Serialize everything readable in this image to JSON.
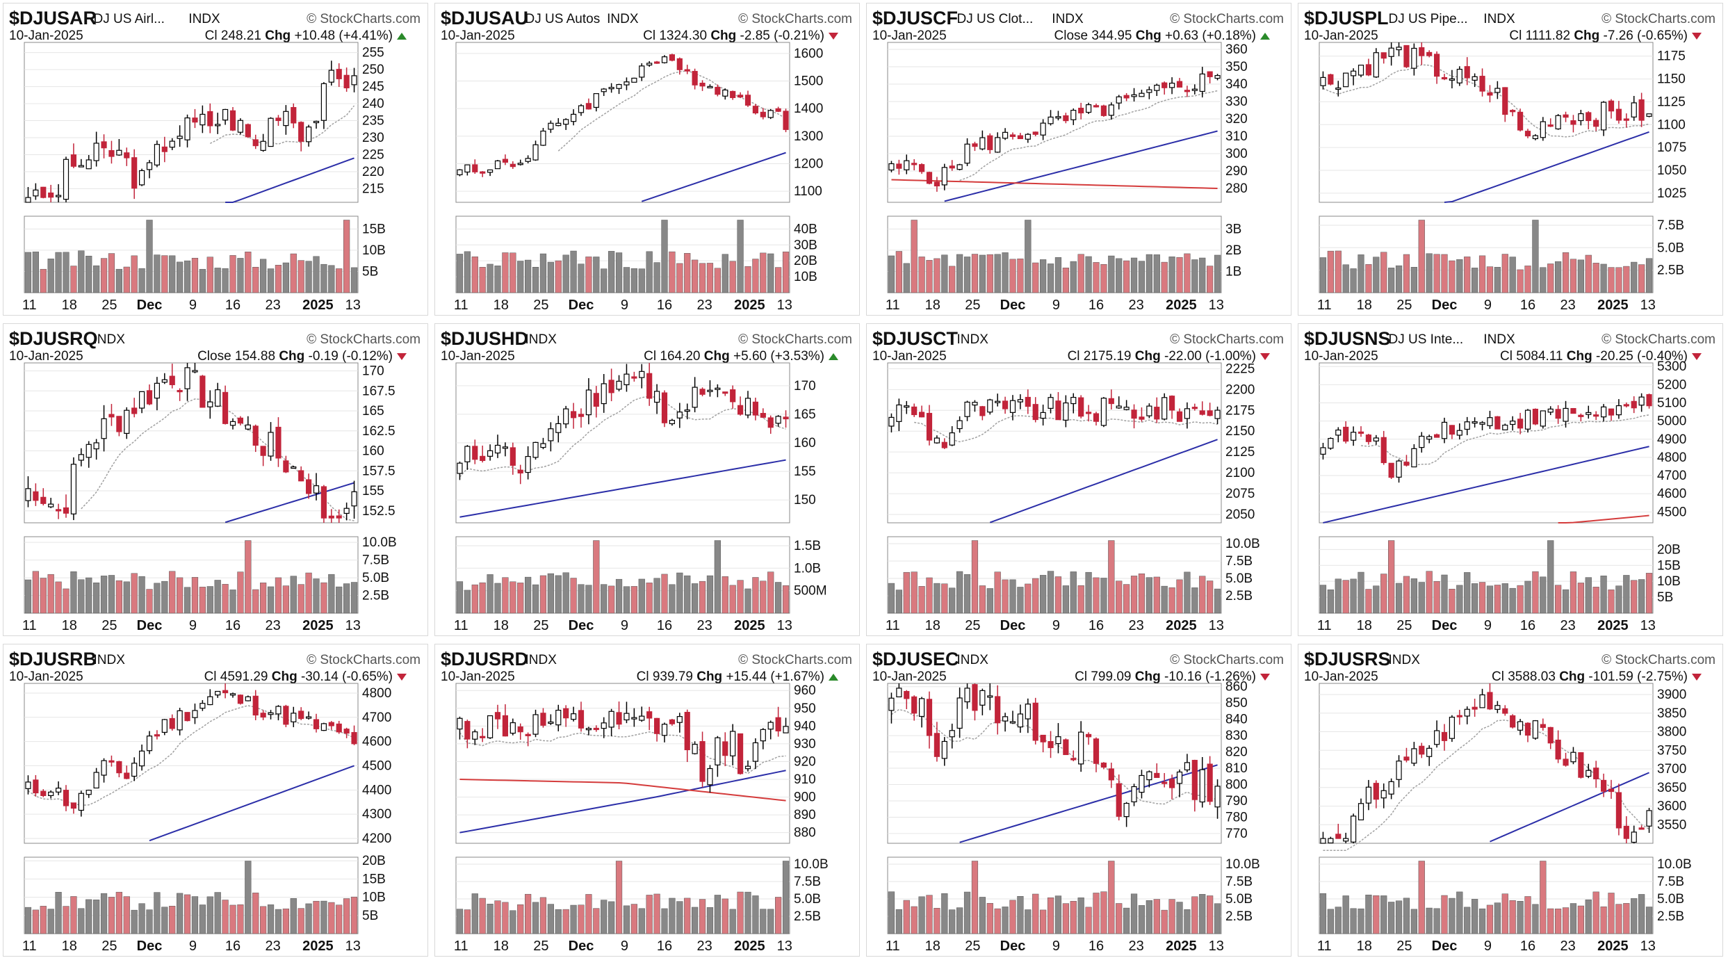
{
  "colors": {
    "up_fill": "#ffffff",
    "down_fill": "#c2243a",
    "candle_edge": "#000000",
    "sma_fast": "#a0a0a0",
    "sma_slow": "#2b2ea8",
    "sma_long": "#d43b3b",
    "vol_gray": "#888888",
    "vol_red": "#d9797f",
    "arrow_up": "#2a8a2a",
    "arrow_down": "#c2243a"
  },
  "watermark": "© StockCharts.com",
  "x_labels": [
    "11",
    "18",
    "25",
    "Dec",
    "9",
    "16",
    "23",
    "2025",
    "13"
  ],
  "chart_data": [
    {
      "type": "candlestick",
      "symbol": "$DJUSAR",
      "name": "DJ US Airl...",
      "exchange": "INDX",
      "date": "10-Jan-2025",
      "price_label": "Cl",
      "price": "248.21",
      "chg": "+10.48 (+4.41%)",
      "dir": "up",
      "yticks": [
        215,
        220,
        225,
        230,
        235,
        240,
        245,
        250,
        255
      ],
      "ylim": [
        211,
        258
      ],
      "start": 218,
      "end": 248.21,
      "lows_at": [
        0.05,
        0.35,
        0.7,
        0.85
      ],
      "amp": 10,
      "sma_fast_from": 0.55,
      "sma_slow": [
        [
          0.6,
          210
        ],
        [
          1.0,
          224
        ]
      ],
      "vol_ticks": [
        "5B",
        "10B",
        "15B"
      ],
      "vol_max": 18,
      "vol_spike_at": [
        0.38,
        0.98
      ]
    },
    {
      "type": "candlestick",
      "symbol": "$DJUSAU",
      "name": "DJ US Autos",
      "exchange": "INDX",
      "date": "10-Jan-2025",
      "price_label": "Cl",
      "price": "1324.30",
      "chg": "-2.85 (-0.21%)",
      "dir": "down",
      "yticks": [
        1100,
        1200,
        1300,
        1400,
        1500,
        1600
      ],
      "ylim": [
        1060,
        1640
      ],
      "start": 1220,
      "end": 1324,
      "lows_at": [
        0.06,
        0.2
      ],
      "peak": [
        0.6,
        1580
      ],
      "amp": 60,
      "sma_fast_from": 0.3,
      "sma_slow": [
        [
          0.55,
          1060
        ],
        [
          1.0,
          1240
        ]
      ],
      "vol_ticks": [
        "10B",
        "20B",
        "30B",
        "40B"
      ],
      "vol_max": 48,
      "vol_spike_at": [
        0.62,
        0.86
      ]
    },
    {
      "type": "candlestick",
      "symbol": "$DJUSCF",
      "name": "DJ US Clot...",
      "exchange": "INDX",
      "date": "10-Jan-2025",
      "price_label": "Close",
      "price": "344.95",
      "chg": "+0.63 (+0.18%)",
      "dir": "up",
      "yticks": [
        280,
        290,
        300,
        310,
        320,
        330,
        340,
        350,
        360
      ],
      "ylim": [
        272,
        364
      ],
      "start": 290,
      "end": 344.95,
      "lows_at": [
        0.15
      ],
      "amp": 12,
      "sma_fast_from": 0.2,
      "sma_slow": [
        [
          0.15,
          272
        ],
        [
          1.0,
          313
        ]
      ],
      "sma_long": [
        [
          0,
          285
        ],
        [
          1.0,
          280
        ]
      ],
      "vol_ticks": [
        "1B",
        "2B",
        "3B"
      ],
      "vol_max": 3.6,
      "vol_spike_at": [
        0.08,
        0.42
      ]
    },
    {
      "type": "candlestick",
      "symbol": "$DJUSPL",
      "name": "DJ US Pipe...",
      "exchange": "INDX",
      "date": "10-Jan-2025",
      "price_label": "Cl",
      "price": "1111.82",
      "chg": "-7.26 (-0.65%)",
      "dir": "down",
      "yticks": [
        1025,
        1050,
        1075,
        1100,
        1125,
        1150,
        1175
      ],
      "ylim": [
        1015,
        1190
      ],
      "start": 1110,
      "end": 1111.82,
      "lows_at": [
        0.62
      ],
      "peak": [
        0.22,
        1180
      ],
      "amp": 30,
      "sma_fast_from": 0.0,
      "sma_slow": [
        [
          0.35,
          1010
        ],
        [
          1.0,
          1092
        ]
      ],
      "vol_ticks": [
        "2.5B",
        "5.0B",
        "7.5B"
      ],
      "vol_max": 8.5,
      "vol_spike_at": [
        0.3,
        0.66
      ]
    },
    {
      "type": "candlestick",
      "symbol": "$DJUSRQ",
      "name": "",
      "exchange": "INDX",
      "date": "10-Jan-2025",
      "price_label": "Close",
      "price": "154.88",
      "chg": "-0.19 (-0.12%)",
      "dir": "down",
      "yticks": [
        152.5,
        155.0,
        157.5,
        160.0,
        162.5,
        165.0,
        167.5,
        170.0
      ],
      "ylim": [
        151,
        171
      ],
      "start": 155,
      "end": 154.88,
      "lows_at": [
        0.1,
        0.95
      ],
      "peak": [
        0.45,
        170
      ],
      "amp": 5,
      "sma_fast_from": 0.15,
      "sma_slow": [
        [
          0.6,
          151
        ],
        [
          1.0,
          156
        ]
      ],
      "vol_ticks": [
        "2.5B",
        "5.0B",
        "7.5B",
        "10.0B"
      ],
      "vol_max": 10.8,
      "vol_spike_at": [
        0.68
      ]
    },
    {
      "type": "candlestick",
      "symbol": "$DJUSHD",
      "name": "",
      "exchange": "INDX",
      "date": "10-Jan-2025",
      "price_label": "Cl",
      "price": "164.20",
      "chg": "+5.60 (+3.53%)",
      "dir": "up",
      "yticks": [
        150,
        155,
        160,
        165,
        170
      ],
      "ylim": [
        146,
        174
      ],
      "start": 157,
      "end": 164.2,
      "lows_at": [
        0.2,
        0.65
      ],
      "peak": [
        0.52,
        172
      ],
      "amp": 6,
      "sma_fast_from": 0.0,
      "sma_slow": [
        [
          0,
          147
        ],
        [
          1.0,
          157
        ]
      ],
      "vol_ticks": [
        "500M",
        "1.0B",
        "1.5B"
      ],
      "vol_max": 1.7,
      "vol_spike_at": [
        0.42,
        0.8
      ]
    },
    {
      "type": "candlestick",
      "symbol": "$DJUSCT",
      "name": "",
      "exchange": "INDX",
      "date": "10-Jan-2025",
      "price_label": "Cl",
      "price": "2175.19",
      "chg": "-22.00 (-1.00%)",
      "dir": "down",
      "yticks": [
        2050,
        2075,
        2100,
        2125,
        2150,
        2175,
        2200,
        2225
      ],
      "ylim": [
        2040,
        2232
      ],
      "start": 2175,
      "end": 2175.19,
      "lows_at": [
        0.15
      ],
      "amp": 35,
      "sma_fast_from": 0.05,
      "sma_slow": [
        [
          0.3,
          2040
        ],
        [
          1.0,
          2140
        ]
      ],
      "vol_ticks": [
        "2.5B",
        "5.0B",
        "7.5B",
        "10.0B"
      ],
      "vol_max": 11,
      "vol_spike_at": [
        0.25,
        0.68
      ]
    },
    {
      "type": "candlestick",
      "symbol": "$DJUSNS",
      "name": "DJ US Inte...",
      "exchange": "INDX",
      "date": "10-Jan-2025",
      "price_label": "Cl",
      "price": "5084.11",
      "chg": "-20.25 (-0.40%)",
      "dir": "down",
      "yticks": [
        4500,
        4600,
        4700,
        4800,
        4900,
        5000,
        5100,
        5200,
        5300
      ],
      "ylim": [
        4440,
        5320
      ],
      "start": 4900,
      "end": 5084,
      "lows_at": [
        0.2,
        0.25
      ],
      "amp": 120,
      "sma_fast_from": 0.1,
      "sma_slow": [
        [
          0,
          4440
        ],
        [
          1.0,
          4860
        ]
      ],
      "sma_long": [
        [
          0.7,
          4430
        ],
        [
          1.0,
          4480
        ]
      ],
      "vol_ticks": [
        "5B",
        "10B",
        "15B",
        "20B"
      ],
      "vol_max": 24,
      "vol_spike_at": [
        0.2,
        0.7
      ]
    },
    {
      "type": "candlestick",
      "symbol": "$DJUSRB",
      "name": "",
      "exchange": "INDX",
      "date": "10-Jan-2025",
      "price_label": "Cl",
      "price": "4591.29",
      "chg": "-30.14 (-0.65%)",
      "dir": "down",
      "yticks": [
        4200,
        4300,
        4400,
        4500,
        4600,
        4700,
        4800
      ],
      "ylim": [
        4180,
        4840
      ],
      "start": 4400,
      "end": 4591,
      "lows_at": [
        0.15,
        0.3
      ],
      "peak": [
        0.58,
        4800
      ],
      "amp": 90,
      "sma_fast_from": 0.0,
      "sma_slow": [
        [
          0.35,
          4180
        ],
        [
          1.0,
          4500
        ]
      ],
      "vol_ticks": [
        "5B",
        "10B",
        "15B",
        "20B"
      ],
      "vol_max": 21,
      "vol_spike_at": [
        0.68
      ]
    },
    {
      "type": "candlestick",
      "symbol": "$DJUSRD",
      "name": "",
      "exchange": "INDX",
      "date": "10-Jan-2025",
      "price_label": "Cl",
      "price": "939.79",
      "chg": "+15.44 (+1.67%)",
      "dir": "up",
      "yticks": [
        880,
        890,
        900,
        910,
        920,
        930,
        940,
        950,
        960
      ],
      "ylim": [
        874,
        964
      ],
      "start": 940,
      "end": 939.79,
      "lows_at": [
        0.75,
        0.88
      ],
      "amp": 20,
      "sma_fast_from": 0.0,
      "sma_slow": [
        [
          0,
          880
        ],
        [
          0.6,
          900
        ],
        [
          1.0,
          915
        ]
      ],
      "sma_long": [
        [
          0,
          910
        ],
        [
          0.5,
          908
        ],
        [
          1.0,
          898
        ]
      ],
      "vol_ticks": [
        "2.5B",
        "5.0B",
        "7.5B",
        "10.0B"
      ],
      "vol_max": 11,
      "vol_spike_at": [
        0.48,
        0.99
      ]
    },
    {
      "type": "candlestick",
      "symbol": "$DJUSEC",
      "name": "",
      "exchange": "INDX",
      "date": "10-Jan-2025",
      "price_label": "Cl",
      "price": "799.09",
      "chg": "-10.16 (-1.26%)",
      "dir": "down",
      "yticks": [
        770,
        780,
        790,
        800,
        810,
        820,
        830,
        840,
        850,
        860
      ],
      "ylim": [
        764,
        862
      ],
      "start": 840,
      "end": 799,
      "lows_at": [
        0.15,
        0.7
      ],
      "peak": [
        0.25,
        855
      ],
      "amp": 25,
      "sma_fast_from": 0.0,
      "sma_slow": [
        [
          0.2,
          764
        ],
        [
          1.0,
          812
        ]
      ],
      "vol_ticks": [
        "2.5B",
        "5.0B",
        "7.5B",
        "10.0B"
      ],
      "vol_max": 11,
      "vol_spike_at": [
        0.25,
        0.68
      ]
    },
    {
      "type": "candlestick",
      "symbol": "$DJUSRS",
      "name": "",
      "exchange": "INDX",
      "date": "10-Jan-2025",
      "price_label": "Cl",
      "price": "3588.03",
      "chg": "-101.59 (-2.75%)",
      "dir": "down",
      "yticks": [
        3550,
        3600,
        3650,
        3700,
        3750,
        3800,
        3850,
        3900
      ],
      "ylim": [
        3500,
        3930
      ],
      "start": 3550,
      "end": 3588,
      "lows_at": [
        0.05,
        0.95
      ],
      "peak": [
        0.5,
        3900
      ],
      "amp": 80,
      "sma_fast_from": 0.0,
      "sma_slow": [
        [
          0.5,
          3500
        ],
        [
          1.0,
          3690
        ]
      ],
      "vol_ticks": [
        "2.5B",
        "5.0B",
        "7.5B",
        "10.0B"
      ],
      "vol_max": 11,
      "vol_spike_at": [
        0.3,
        0.68
      ]
    }
  ]
}
